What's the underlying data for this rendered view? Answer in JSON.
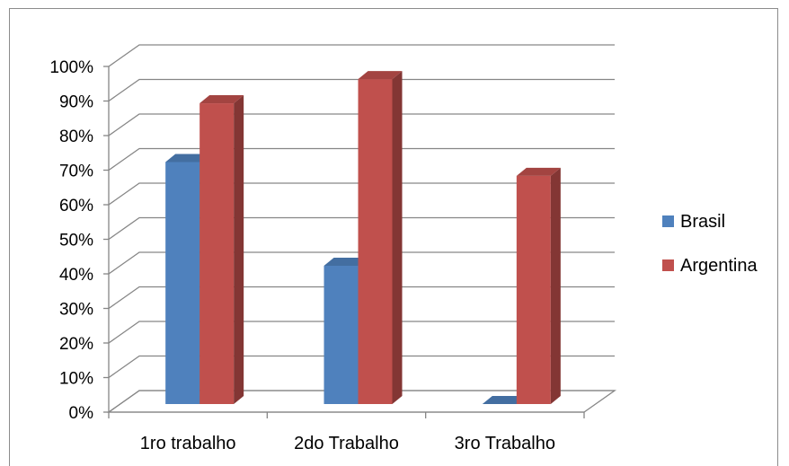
{
  "chart_data": {
    "type": "bar",
    "style": "3d-clustered-column",
    "categories": [
      "1ro trabalho",
      "2do Trabalho",
      "3ro Trabalho"
    ],
    "series": [
      {
        "name": "Brasil",
        "values": [
          70,
          40,
          0
        ],
        "color": "#4f81bd"
      },
      {
        "name": "Argentina",
        "values": [
          87,
          94,
          66
        ],
        "color": "#c0504d"
      }
    ],
    "ylim": [
      0,
      100
    ],
    "yticks": [
      "0%",
      "10%",
      "20%",
      "30%",
      "40%",
      "50%",
      "60%",
      "70%",
      "80%",
      "90%",
      "100%"
    ],
    "grid": true,
    "legend_position": "right"
  }
}
